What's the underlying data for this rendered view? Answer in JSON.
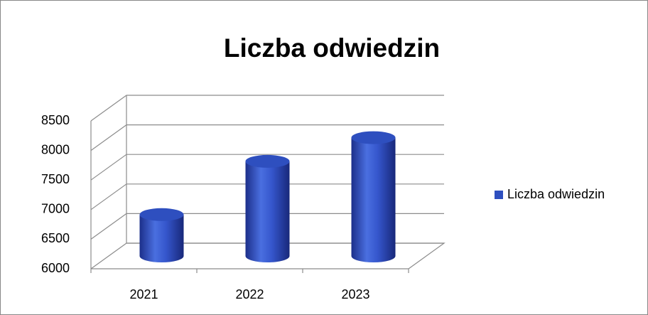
{
  "chart_data": {
    "type": "bar3d",
    "title": "Liczba odwiedzin",
    "categories": [
      "2021",
      "2022",
      "2023"
    ],
    "series": [
      {
        "name": "Liczba odwiedzin",
        "color": "#2e4fbf",
        "values": [
          6700,
          7600,
          8000
        ]
      }
    ],
    "ylim": [
      6000,
      8500
    ],
    "yticks": [
      6000,
      6500,
      7000,
      7500,
      8000,
      8500
    ],
    "grid": true,
    "legend": "right"
  }
}
